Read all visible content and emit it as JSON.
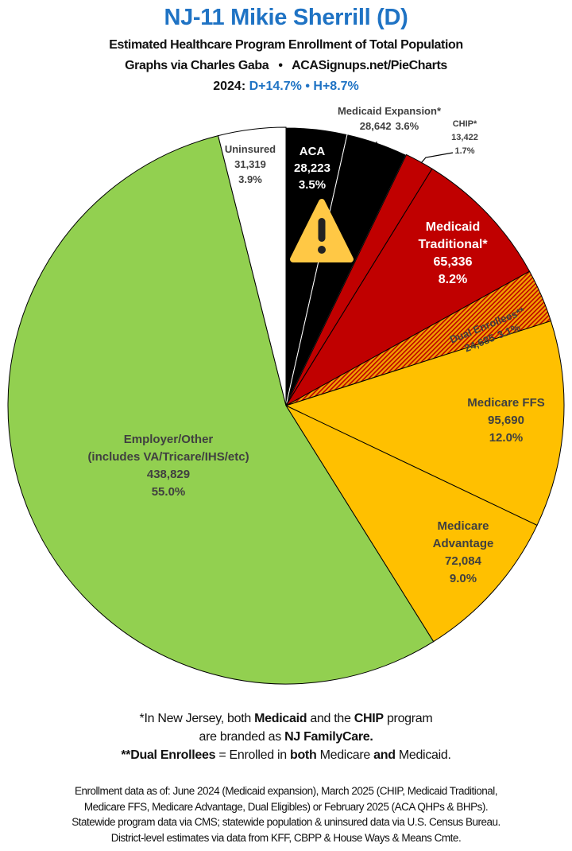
{
  "header": {
    "title": "NJ-11 Mikie Sherrill (D)",
    "subtitle": "Estimated Healthcare Program Enrollment of Total Population",
    "credit": "Graphs via Charles Gaba   •   ACASignups.net/PieCharts",
    "lean_year": "2024:",
    "lean_d": "D+14.7%",
    "lean_sep": "•",
    "lean_h": "H+8.7%"
  },
  "chart_data": {
    "type": "pie",
    "start": "12 o'clock, clockwise",
    "slices": [
      {
        "label": [
          "ACA"
        ],
        "value": 28223,
        "value_text": "28,223",
        "pct": "3.5%",
        "color": "#000000",
        "text_color": "#ffffff",
        "icon": "warning-icon"
      },
      {
        "label": [
          "Medicaid Expansion*"
        ],
        "value": 28642,
        "value_text": "28,642",
        "pct": "3.6%",
        "color": "#000000",
        "text_color": "#404040"
      },
      {
        "label": [
          "CHIP*"
        ],
        "value": 13422,
        "value_text": "13,422",
        "pct": "1.7%",
        "color": "#c00000",
        "text_color": "#404040"
      },
      {
        "label": [
          "Medicaid",
          "Traditional*"
        ],
        "value": 65336,
        "value_text": "65,336",
        "pct": "8.2%",
        "color": "#c00000",
        "text_color": "#ffffff"
      },
      {
        "label": [
          "Dual Enrollees**"
        ],
        "value": 24685,
        "value_text": "24,685",
        "pct": "3.1%",
        "color": "#f0a000",
        "hatch": "#c00000",
        "text_color": "#404040"
      },
      {
        "label": [
          "Medicare FFS"
        ],
        "value": 95690,
        "value_text": "95,690",
        "pct": "12.0%",
        "color": "#ffc000",
        "text_color": "#404040"
      },
      {
        "label": [
          "Medicare",
          "Advantage"
        ],
        "value": 72084,
        "value_text": "72,084",
        "pct": "9.0%",
        "color": "#ffc000",
        "text_color": "#404040"
      },
      {
        "label": [
          "Employer/Other",
          "(includes VA/Tricare/IHS/etc)"
        ],
        "value": 438829,
        "value_text": "438,829",
        "pct": "55.0%",
        "color": "#92d050",
        "text_color": "#404040"
      },
      {
        "label": [
          "Uninsured"
        ],
        "value": 31319,
        "value_text": "31,319",
        "pct": "3.9%",
        "color": "#ffffff",
        "text_color": "#404040"
      }
    ]
  },
  "notes": {
    "n1a": "*In New Jersey, both ",
    "n1b": "Medicaid",
    "n1c": " and the ",
    "n1d": "CHIP",
    "n1e": " program",
    "n2a": "are branded as ",
    "n2b": "NJ FamilyCare.",
    "n3a": "**Dual Enrollees",
    "n3b": " = Enrolled in ",
    "n3c": "both",
    "n3d": " Medicare ",
    "n3e": "and",
    "n3f": " Medicaid."
  },
  "footer": {
    "l1": "Enrollment data as of: June 2024 (Medicaid expansion), March 2025 (CHIP, Medicaid Traditional,",
    "l2": "Medicare FFS, Medicare Advantage, Dual Eligibles) or February 2025 (ACA QHPs & BHPs).",
    "l3": "Statewide program data via CMS; statewide population & uninsured data via U.S. Census Bureau.",
    "l4": "District-level estimates via data from KFF, CBPP & House Ways & Means Cmte."
  }
}
